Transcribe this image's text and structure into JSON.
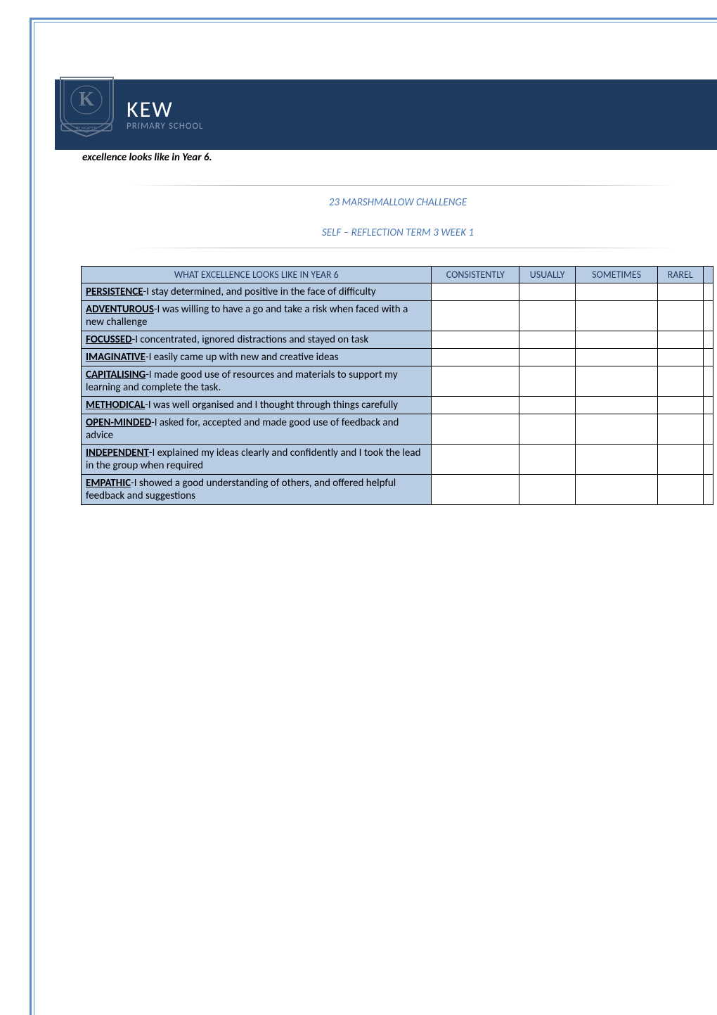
{
  "logo": {
    "name": "KEW",
    "subtitle": "PRIMARY SCHOOL"
  },
  "subtitle": "excellence looks like in Year 6.",
  "heading1": "23 MARSHMALLOW CHALLENGE",
  "heading2": "SELF – REFLECTION TERM 3 WEEK 1",
  "table": {
    "headers": [
      "WHAT EXCELLENCE LOOKS LIKE IN YEAR 6",
      "CONSISTENTLY",
      "USUALLY",
      "SOMETIMES",
      "RAREL"
    ],
    "rows": [
      {
        "trait": "PERSISTENCE",
        "desc": "-I stay determined, and positive in the face of difficulty"
      },
      {
        "trait": "ADVENTUROUS",
        "desc": "-I was willing to have a go and take a risk when faced with a new challenge"
      },
      {
        "trait": "FOCUSSED",
        "desc": "-I concentrated, ignored distractions and stayed on task"
      },
      {
        "trait": "IMAGINATIVE",
        "desc": "-I easily came up with new and creative ideas"
      },
      {
        "trait": "CAPITALISING",
        "desc": "-I made good use of resources and materials to support my learning and complete the task."
      },
      {
        "trait": "METHODICAL",
        "desc": "-I was well organised and I thought through things carefully"
      },
      {
        "trait": "OPEN-MINDED",
        "desc": "-I asked for, accepted and made good use of feedback and advice"
      },
      {
        "trait": "INDEPENDENT",
        "desc": "-I explained my ideas clearly and confidently and I took the lead in the group when required"
      },
      {
        "trait": "EMPATHIC",
        "desc": "-I showed a good understanding of others, and offered helpful feedback and suggestions"
      }
    ]
  },
  "colors": {
    "border": "#5b8fc7",
    "header_bg": "#1f3a5f",
    "table_bg": "#b8cce4",
    "heading_text": "#4d7ab5"
  }
}
